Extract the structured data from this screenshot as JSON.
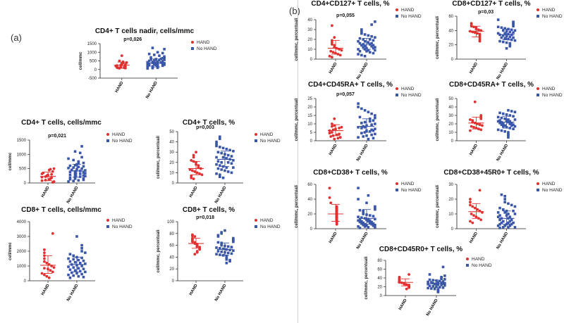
{
  "panel_labels": {
    "a": "(a)",
    "b": "(b)"
  },
  "colors": {
    "hand": "#e03030",
    "nohand": "#3a56a8",
    "mean_hand": "#e03030",
    "mean_nohand": "#3a56a8"
  },
  "chart_data": [
    {
      "type": "scatter",
      "title": "CD4+ T cells nadir, cells/mmc",
      "pvalue": "p=0,026",
      "ylabel": "cell/mmc",
      "ylim": [
        -500,
        1500
      ],
      "yticks": [
        -500,
        0,
        500,
        1000,
        1500
      ],
      "categories": [
        "HAND",
        "No HAND"
      ],
      "legend": [
        "HAND",
        "No HAND"
      ],
      "series": [
        {
          "name": "HAND",
          "mean": 250,
          "sd_low": 70,
          "sd_high": 430,
          "values": [
            800,
            500,
            450,
            400,
            380,
            350,
            300,
            280,
            250,
            230,
            200,
            180,
            150,
            130,
            110,
            100,
            90,
            80,
            70
          ]
        },
        {
          "name": "No HAND",
          "mean": 380,
          "sd_low": 150,
          "sd_high": 610,
          "values": [
            1250,
            1180,
            1000,
            950,
            900,
            850,
            800,
            750,
            700,
            680,
            650,
            620,
            600,
            580,
            560,
            540,
            520,
            500,
            480,
            460,
            440,
            420,
            400,
            390,
            380,
            370,
            360,
            350,
            340,
            330,
            320,
            300,
            290,
            280,
            270,
            260,
            250,
            240,
            220,
            200,
            180,
            160,
            150,
            130,
            110,
            100,
            80,
            60
          ]
        }
      ]
    },
    {
      "type": "scatter",
      "title": "CD4+ T cells, cells/mmc",
      "pvalue": "p=0,021",
      "ylabel": "cell/mmc",
      "ylim": [
        0,
        1500
      ],
      "yticks": [
        0,
        500,
        1000,
        1500
      ],
      "categories": [
        "HAND",
        "No HAND"
      ],
      "legend": [
        "HAND",
        "No HAND"
      ],
      "series": [
        {
          "name": "HAND",
          "mean": 230,
          "sd_low": 80,
          "sd_high": 380,
          "values": [
            500,
            480,
            450,
            400,
            350,
            320,
            300,
            280,
            250,
            220,
            200,
            180,
            150,
            120,
            100,
            80,
            50,
            20
          ]
        },
        {
          "name": "No HAND",
          "mean": 420,
          "sd_low": 200,
          "sd_high": 650,
          "values": [
            1280,
            1100,
            1050,
            900,
            850,
            800,
            750,
            700,
            680,
            650,
            620,
            600,
            580,
            560,
            540,
            520,
            500,
            480,
            460,
            440,
            420,
            400,
            380,
            360,
            350,
            340,
            320,
            300,
            280,
            260,
            250,
            240,
            220,
            200,
            180,
            160,
            150,
            130,
            110,
            90,
            70,
            50
          ]
        }
      ]
    },
    {
      "type": "scatter",
      "title": "CD4+ T cells, %",
      "pvalue": "p=0,003",
      "ylabel": "cell/mmc, percentuali",
      "ylim": [
        0,
        50
      ],
      "yticks": [
        0,
        10,
        20,
        30,
        40,
        50
      ],
      "categories": [
        "HAND",
        "No HAND"
      ],
      "legend": [
        "HAND",
        "No HAND"
      ],
      "series": [
        {
          "name": "HAND",
          "mean": 14,
          "sd_low": 8,
          "sd_high": 21,
          "values": [
            30,
            27,
            25,
            22,
            21,
            20,
            18,
            17,
            15,
            14,
            13,
            12,
            11,
            10,
            9,
            8,
            7,
            5,
            4
          ]
        },
        {
          "name": "No HAND",
          "mean": 23,
          "sd_low": 16,
          "sd_high": 31,
          "values": [
            45,
            43,
            40,
            38,
            36,
            35,
            34,
            33,
            32,
            31,
            30,
            29,
            28,
            27,
            26,
            25,
            25,
            24,
            23,
            22,
            21,
            20,
            20,
            19,
            18,
            17,
            16,
            15,
            15,
            14,
            13,
            12,
            11,
            10,
            9,
            8,
            6,
            5
          ]
        }
      ]
    },
    {
      "type": "scatter",
      "title": "CD8+ T cells, cells/mmc",
      "pvalue": "",
      "ylabel": "cell/mmc",
      "ylim": [
        0,
        4000
      ],
      "yticks": [
        0,
        1000,
        2000,
        3000,
        4000
      ],
      "categories": [
        "HAND",
        "No HAND"
      ],
      "legend": [
        "HAND",
        "No HAND"
      ],
      "series": [
        {
          "name": "HAND",
          "mean": 1050,
          "sd_low": 500,
          "sd_high": 1700,
          "values": [
            3200,
            2100,
            1900,
            1700,
            1500,
            1300,
            1200,
            1100,
            1000,
            900,
            850,
            800,
            700,
            600,
            500,
            400,
            300,
            200
          ]
        },
        {
          "name": "No HAND",
          "mean": 1100,
          "sd_low": 600,
          "sd_high": 1600,
          "values": [
            3000,
            2400,
            2200,
            2000,
            1900,
            1800,
            1700,
            1600,
            1550,
            1500,
            1450,
            1400,
            1350,
            1300,
            1250,
            1200,
            1150,
            1100,
            1050,
            1000,
            950,
            900,
            850,
            800,
            750,
            700,
            650,
            600,
            550,
            500,
            450,
            400,
            350,
            300,
            250,
            200
          ]
        }
      ]
    },
    {
      "type": "scatter",
      "title": "CD8+ T cells, %",
      "pvalue": "p=0,018",
      "ylabel": "cell/mmc, percentuali",
      "ylim": [
        0,
        100
      ],
      "yticks": [
        0,
        20,
        40,
        60,
        80,
        100
      ],
      "categories": [
        "HAND",
        "No HAND"
      ],
      "legend": [
        "HAND",
        "No HAND"
      ],
      "series": [
        {
          "name": "HAND",
          "mean": 63,
          "sd_low": 55,
          "sd_high": 72,
          "values": [
            78,
            76,
            75,
            72,
            70,
            68,
            66,
            65,
            63,
            62,
            60,
            58,
            57,
            55,
            53,
            50,
            48,
            45
          ]
        },
        {
          "name": "No HAND",
          "mean": 53,
          "sd_low": 43,
          "sd_high": 64,
          "values": [
            85,
            82,
            80,
            77,
            75,
            72,
            70,
            68,
            66,
            65,
            64,
            62,
            60,
            59,
            58,
            57,
            56,
            55,
            54,
            53,
            52,
            51,
            50,
            49,
            48,
            47,
            46,
            45,
            44,
            43,
            42,
            40,
            38,
            36,
            35,
            33,
            30
          ]
        }
      ]
    },
    {
      "type": "scatter",
      "title": "CD4+CD127+ T cells, %",
      "pvalue": "p=0,055",
      "ylabel": "cell/mmc, percentuali",
      "ylim": [
        0,
        40
      ],
      "yticks": [
        0,
        10,
        20,
        30,
        40
      ],
      "categories": [
        "HAND",
        "No HAND"
      ],
      "legend": [
        "HAND",
        "No HAND"
      ],
      "series": [
        {
          "name": "HAND",
          "mean": 11,
          "sd_low": 5,
          "sd_high": 19,
          "values": [
            34,
            22,
            19,
            17,
            15,
            14,
            12,
            11,
            10,
            9,
            8,
            7,
            6,
            5,
            4,
            3,
            2
          ]
        },
        {
          "name": "No HAND",
          "mean": 15,
          "sd_low": 10,
          "sd_high": 21,
          "values": [
            38,
            35,
            30,
            28,
            26,
            25,
            24,
            23,
            22,
            21,
            20,
            20,
            19,
            18,
            18,
            17,
            16,
            16,
            15,
            15,
            14,
            14,
            13,
            13,
            12,
            12,
            11,
            11,
            10,
            10,
            9,
            9,
            8,
            8,
            7,
            6,
            5,
            4,
            3
          ]
        }
      ]
    },
    {
      "type": "scatter",
      "title": "CD8+CD127+ T cells, %",
      "pvalue": "p=0,03",
      "ylabel": "cell/mmc, percentuali",
      "ylim": [
        0,
        60
      ],
      "yticks": [
        0,
        20,
        40,
        60
      ],
      "categories": [
        "HAND",
        "No HAND"
      ],
      "legend": [
        "HAND",
        "No HAND"
      ],
      "series": [
        {
          "name": "HAND",
          "mean": 39,
          "sd_low": 31,
          "sd_high": 46,
          "values": [
            50,
            48,
            46,
            45,
            44,
            42,
            41,
            40,
            39,
            38,
            37,
            36,
            35,
            33,
            31,
            29,
            27,
            25
          ]
        },
        {
          "name": "No HAND",
          "mean": 34,
          "sd_low": 27,
          "sd_high": 42,
          "values": [
            55,
            52,
            50,
            48,
            46,
            45,
            44,
            43,
            42,
            41,
            40,
            40,
            39,
            38,
            37,
            36,
            36,
            35,
            34,
            34,
            33,
            32,
            31,
            30,
            30,
            29,
            28,
            27,
            26,
            25,
            24,
            23,
            22,
            20,
            18,
            15
          ]
        }
      ]
    },
    {
      "type": "scatter",
      "title": "CD4+CD45RA+ T cells, %",
      "pvalue": "p=0,057",
      "ylabel": "cell/mmc, percentuali",
      "ylim": [
        0,
        25
      ],
      "yticks": [
        0,
        5,
        10,
        15,
        20,
        25
      ],
      "categories": [
        "HAND",
        "No HAND"
      ],
      "legend": [
        "HAND",
        "No HAND"
      ],
      "series": [
        {
          "name": "HAND",
          "mean": 6,
          "sd_low": 3,
          "sd_high": 9.5,
          "values": [
            13,
            10,
            9,
            8.5,
            8,
            7.5,
            7,
            6.5,
            6,
            5,
            4.5,
            4,
            3.5,
            3,
            2.5,
            2,
            1.5,
            1
          ]
        },
        {
          "name": "No HAND",
          "mean": 8.5,
          "sd_low": 5,
          "sd_high": 13,
          "values": [
            22,
            20,
            19,
            18,
            17,
            16,
            15,
            14,
            13.5,
            13,
            12,
            11.5,
            11,
            10.5,
            10,
            9.5,
            9,
            8.5,
            8,
            8,
            7.5,
            7,
            6.5,
            6,
            6,
            5.5,
            5,
            4.5,
            4,
            3.5,
            3,
            2.5,
            2,
            1.5,
            1
          ]
        }
      ]
    },
    {
      "type": "scatter",
      "title": "CD8+CD45RA+ T cells, %",
      "pvalue": "",
      "ylabel": "cell/mmc, percentuali",
      "ylim": [
        0,
        50
      ],
      "yticks": [
        0,
        10,
        20,
        30,
        40,
        50
      ],
      "categories": [
        "HAND",
        "No HAND"
      ],
      "legend": [
        "HAND",
        "No HAND"
      ],
      "series": [
        {
          "name": "HAND",
          "mean": 21,
          "sd_low": 14,
          "sd_high": 28,
          "values": [
            46,
            30,
            28,
            26,
            25,
            24,
            22,
            21,
            20,
            19,
            18,
            17,
            16,
            15,
            14,
            13,
            12
          ]
        },
        {
          "name": "No HAND",
          "mean": 22,
          "sd_low": 15,
          "sd_high": 29,
          "values": [
            36,
            35,
            34,
            33,
            32,
            31,
            30,
            29,
            28,
            27,
            26,
            25,
            25,
            24,
            24,
            23,
            23,
            22,
            22,
            21,
            21,
            20,
            20,
            19,
            19,
            18,
            18,
            17,
            17,
            16,
            15,
            14,
            13,
            12,
            11,
            10,
            8,
            6,
            4
          ]
        }
      ]
    },
    {
      "type": "scatter",
      "title": "CD8+CD38+ T cells, %",
      "pvalue": "",
      "ylabel": "cell/mmc, percentuali",
      "ylim": [
        0,
        60
      ],
      "yticks": [
        0,
        20,
        40,
        60
      ],
      "categories": [
        "HAND",
        "No HAND"
      ],
      "legend": [
        "HAND",
        "No HAND"
      ],
      "series": [
        {
          "name": "HAND",
          "mean": 20,
          "sd_low": 10,
          "sd_high": 33,
          "values": [
            55,
            42,
            35,
            30,
            28,
            26,
            24,
            22,
            20,
            18,
            16,
            14,
            12,
            10,
            8,
            6
          ]
        },
        {
          "name": "No HAND",
          "mean": 14,
          "sd_low": 6,
          "sd_high": 26,
          "values": [
            55,
            45,
            40,
            35,
            30,
            28,
            26,
            25,
            24,
            22,
            20,
            19,
            18,
            17,
            16,
            15,
            14,
            13,
            13,
            12,
            12,
            11,
            11,
            10,
            10,
            9,
            9,
            8,
            8,
            7,
            7,
            6,
            6,
            5,
            5,
            4,
            4,
            3,
            3,
            2,
            2,
            1
          ]
        }
      ]
    },
    {
      "type": "scatter",
      "title": "CD8+CD38+45R0+ T cells, %",
      "pvalue": "",
      "ylabel": "cell/mmc, percentuali",
      "ylim": [
        0,
        30
      ],
      "yticks": [
        0,
        10,
        20,
        30
      ],
      "categories": [
        "HAND",
        "No HAND"
      ],
      "legend": [
        "HAND",
        "No HAND"
      ],
      "series": [
        {
          "name": "HAND",
          "mean": 11.5,
          "sd_low": 7,
          "sd_high": 17,
          "values": [
            26,
            20,
            18,
            16,
            15,
            14,
            13,
            12,
            11,
            10,
            9,
            8,
            7,
            6,
            5,
            4
          ]
        },
        {
          "name": "No HAND",
          "mean": 7,
          "sd_low": 3,
          "sd_high": 12,
          "values": [
            23,
            22,
            20,
            18,
            17,
            16,
            15,
            14,
            13,
            12,
            12,
            11,
            11,
            10,
            10,
            9,
            9,
            8,
            8,
            7,
            7,
            6,
            6,
            5,
            5,
            4,
            4,
            4,
            3,
            3,
            3,
            2,
            2,
            2,
            1,
            1,
            1,
            0.5
          ]
        }
      ]
    },
    {
      "type": "scatter",
      "title": "CD8+CD45R0+ T cells, %",
      "pvalue": "",
      "ylabel": "cell/mmc, percentuali",
      "ylim": [
        0,
        80
      ],
      "yticks": [
        0,
        20,
        40,
        60,
        80
      ],
      "categories": [
        "HAND",
        "No HAND"
      ],
      "legend": [
        "HAND",
        "No HAND"
      ],
      "series": [
        {
          "name": "HAND",
          "mean": 30,
          "sd_low": 22,
          "sd_high": 38,
          "values": [
            48,
            42,
            40,
            38,
            36,
            34,
            32,
            30,
            29,
            28,
            26,
            25,
            24,
            22,
            20,
            18,
            15
          ]
        },
        {
          "name": "No HAND",
          "mean": 27,
          "sd_low": 19,
          "sd_high": 35,
          "values": [
            65,
            48,
            45,
            42,
            40,
            38,
            37,
            36,
            35,
            34,
            33,
            32,
            31,
            30,
            30,
            29,
            28,
            28,
            27,
            27,
            26,
            26,
            25,
            24,
            23,
            22,
            21,
            20,
            19,
            18,
            17,
            16,
            15,
            14,
            12,
            10,
            8
          ]
        }
      ]
    }
  ]
}
